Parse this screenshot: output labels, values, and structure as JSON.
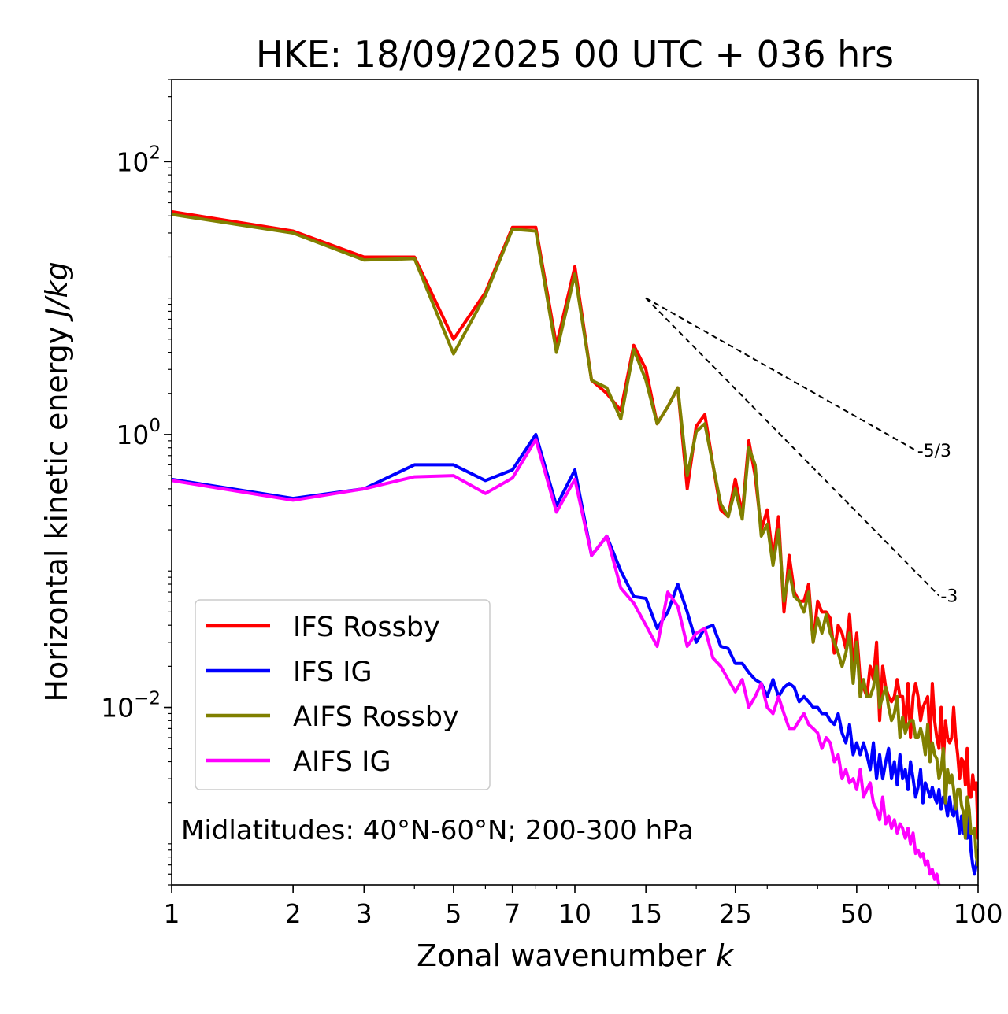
{
  "chart_data": {
    "type": "line",
    "title": "HKE: 18/09/2025 00 UTC + 036 hrs",
    "xlabel": "Zonal wavenumber",
    "xlabel_var": "k",
    "ylabel": "Horizontal kinetic energy",
    "ylabel_unit": "J/kg",
    "xscale": "log",
    "yscale": "log",
    "xlim": [
      1,
      100
    ],
    "ylim": [
      0.0005,
      400
    ],
    "xticks": [
      1,
      2,
      3,
      5,
      7,
      10,
      15,
      25,
      50,
      100
    ],
    "xtick_labels": [
      "1",
      "2",
      "3",
      "5",
      "7",
      "10",
      "15",
      "25",
      "50",
      "100"
    ],
    "yticks": [
      {
        "value": 100,
        "base": "10",
        "exp": "2"
      },
      {
        "value": 1,
        "base": "10",
        "exp": "0"
      },
      {
        "value": 0.01,
        "base": "10",
        "exp": "−2"
      }
    ],
    "legend_position": "lower-left",
    "annotation": "Midlatitudes: 40°N-60°N; 200-300 hPa",
    "reference_slopes": [
      {
        "label": "-5/3",
        "slope": -1.6667,
        "x_start": 15,
        "y_start": 10,
        "x_end": 70
      },
      {
        "label": "-3",
        "slope": -3,
        "x_start": 15,
        "y_start": 10,
        "x_end": 80
      }
    ],
    "series": [
      {
        "name": "IFS Rossby",
        "color": "#ff0000",
        "x": [
          1,
          2,
          3,
          4,
          5,
          6,
          7,
          8,
          9,
          10,
          11,
          12,
          13,
          14,
          15,
          16,
          17,
          18,
          19,
          20,
          21,
          22,
          23,
          24,
          25,
          26,
          27,
          28,
          29,
          30,
          31,
          32,
          33,
          34,
          35,
          36,
          37,
          38,
          39,
          40,
          41,
          42,
          43,
          44,
          45,
          46,
          47,
          48,
          49,
          50,
          51,
          52,
          53,
          54,
          55,
          56,
          57,
          58,
          59,
          60,
          61,
          62,
          63,
          64,
          65,
          66,
          67,
          68,
          69,
          70,
          71,
          72,
          73,
          74,
          75,
          76,
          77,
          78,
          79,
          80,
          81,
          82,
          83,
          84,
          85,
          86,
          87,
          88,
          89,
          90,
          91,
          92,
          93,
          94,
          95,
          96,
          97,
          98,
          99,
          100
        ],
        "y": [
          43,
          31,
          20,
          20,
          5,
          11,
          33,
          33,
          4.5,
          17,
          2.5,
          2,
          1.5,
          4.5,
          3,
          1.2,
          1.6,
          2.2,
          0.4,
          1.15,
          1.4,
          0.6,
          0.28,
          0.25,
          0.47,
          0.26,
          0.9,
          0.5,
          0.2,
          0.28,
          0.12,
          0.25,
          0.05,
          0.13,
          0.07,
          0.06,
          0.06,
          0.08,
          0.03,
          0.06,
          0.05,
          0.05,
          0.045,
          0.025,
          0.04,
          0.035,
          0.027,
          0.048,
          0.02,
          0.035,
          0.016,
          0.014,
          0.012,
          0.02,
          0.016,
          0.03,
          0.008,
          0.02,
          0.014,
          0.012,
          0.011,
          0.012,
          0.016,
          0.012,
          0.012,
          0.007,
          0.015,
          0.006,
          0.012,
          0.015,
          0.012,
          0.008,
          0.01,
          0.011,
          0.012,
          0.0055,
          0.015,
          0.008,
          0.006,
          0.005,
          0.01,
          0.004,
          0.008,
          0.006,
          0.0055,
          0.006,
          0.01,
          0.006,
          0.0045,
          0.003,
          0.0042,
          0.004,
          0.0027,
          0.005,
          0.0022,
          0.0022,
          0.0032,
          0.0025,
          0.0028,
          0.0011
        ]
      },
      {
        "name": "IFS IG",
        "color": "#0000ff",
        "x": [
          1,
          2,
          3,
          4,
          5,
          6,
          7,
          8,
          9,
          10,
          11,
          12,
          13,
          14,
          15,
          16,
          17,
          18,
          19,
          20,
          21,
          22,
          23,
          24,
          25,
          26,
          27,
          28,
          29,
          30,
          31,
          32,
          33,
          34,
          35,
          36,
          37,
          38,
          39,
          40,
          41,
          42,
          43,
          44,
          45,
          46,
          47,
          48,
          49,
          50,
          51,
          52,
          53,
          54,
          55,
          56,
          57,
          58,
          59,
          60,
          61,
          62,
          63,
          64,
          65,
          66,
          67,
          68,
          69,
          70,
          71,
          72,
          73,
          74,
          75,
          76,
          77,
          78,
          79,
          80,
          81,
          82,
          83,
          84,
          85,
          86,
          87,
          88,
          89,
          90,
          91,
          92,
          93,
          94,
          95,
          96,
          97,
          98,
          99,
          100
        ],
        "y": [
          0.47,
          0.34,
          0.4,
          0.6,
          0.6,
          0.46,
          0.55,
          1.0,
          0.3,
          0.55,
          0.13,
          0.18,
          0.1,
          0.065,
          0.063,
          0.038,
          0.05,
          0.08,
          0.05,
          0.03,
          0.038,
          0.04,
          0.028,
          0.027,
          0.021,
          0.021,
          0.018,
          0.016,
          0.015,
          0.012,
          0.016,
          0.012,
          0.014,
          0.015,
          0.014,
          0.011,
          0.012,
          0.011,
          0.01,
          0.01,
          0.009,
          0.009,
          0.008,
          0.0075,
          0.009,
          0.0065,
          0.0055,
          0.0075,
          0.0045,
          0.0055,
          0.0045,
          0.0055,
          0.0045,
          0.0035,
          0.0055,
          0.003,
          0.0045,
          0.003,
          0.004,
          0.005,
          0.003,
          0.004,
          0.0027,
          0.0045,
          0.003,
          0.0035,
          0.0025,
          0.004,
          0.003,
          0.0022,
          0.0026,
          0.0035,
          0.002,
          0.0028,
          0.0025,
          0.0022,
          0.0026,
          0.0022,
          0.002,
          0.0025,
          0.0018,
          0.0022,
          0.002,
          0.0016,
          0.0022,
          0.0017,
          0.0016,
          0.0022,
          0.0015,
          0.0012,
          0.0016,
          0.0012,
          0.0014,
          0.0011,
          0.0017,
          0.0009,
          0.0007,
          0.0006,
          0.0007,
          0.0009
        ]
      },
      {
        "name": "AIFS Rossby",
        "color": "#808000",
        "x": [
          1,
          2,
          3,
          4,
          5,
          6,
          7,
          8,
          9,
          10,
          11,
          12,
          13,
          14,
          15,
          16,
          17,
          18,
          19,
          20,
          21,
          22,
          23,
          24,
          25,
          26,
          27,
          28,
          29,
          30,
          31,
          32,
          33,
          34,
          35,
          36,
          37,
          38,
          39,
          40,
          41,
          42,
          43,
          44,
          45,
          46,
          47,
          48,
          49,
          50,
          51,
          52,
          53,
          54,
          55,
          56,
          57,
          58,
          59,
          60,
          61,
          62,
          63,
          64,
          65,
          66,
          67,
          68,
          69,
          70,
          71,
          72,
          73,
          74,
          75,
          76,
          77,
          78,
          79,
          80,
          81,
          82,
          83,
          84,
          85,
          86,
          87,
          88,
          89,
          90,
          91,
          92,
          93,
          94,
          95,
          96,
          97,
          98,
          99,
          100
        ],
        "y": [
          41,
          30,
          19,
          19.5,
          3.9,
          10.5,
          32,
          31,
          4,
          15,
          2.5,
          2.2,
          1.3,
          4.2,
          2.5,
          1.2,
          1.6,
          2.2,
          0.5,
          1.05,
          1.2,
          0.6,
          0.31,
          0.25,
          0.4,
          0.24,
          0.8,
          0.6,
          0.18,
          0.22,
          0.11,
          0.2,
          0.06,
          0.1,
          0.065,
          0.06,
          0.05,
          0.07,
          0.03,
          0.045,
          0.035,
          0.048,
          0.035,
          0.03,
          0.025,
          0.02,
          0.025,
          0.035,
          0.015,
          0.03,
          0.012,
          0.016,
          0.012,
          0.012,
          0.014,
          0.02,
          0.01,
          0.012,
          0.014,
          0.01,
          0.008,
          0.009,
          0.012,
          0.006,
          0.0085,
          0.0065,
          0.0075,
          0.008,
          0.008,
          0.006,
          0.006,
          0.007,
          0.006,
          0.0045,
          0.0075,
          0.004,
          0.0055,
          0.0045,
          0.0042,
          0.003,
          0.0035,
          0.005,
          0.002,
          0.0035,
          0.0028,
          0.0032,
          0.0025,
          0.0018,
          0.0025,
          0.0025,
          0.0019,
          0.0017,
          0.0011,
          0.0022,
          0.0018,
          0.0012,
          0.0012,
          0.0013,
          0.0008,
          0.0007
        ]
      },
      {
        "name": "AIFS IG",
        "color": "#ff00ff",
        "x": [
          1,
          2,
          3,
          4,
          5,
          6,
          7,
          8,
          9,
          10,
          11,
          12,
          13,
          14,
          15,
          16,
          17,
          18,
          19,
          20,
          21,
          22,
          23,
          24,
          25,
          26,
          27,
          28,
          29,
          30,
          31,
          32,
          33,
          34,
          35,
          36,
          37,
          38,
          39,
          40,
          41,
          42,
          43,
          44,
          45,
          46,
          47,
          48,
          49,
          50,
          51,
          52,
          53,
          54,
          55,
          56,
          57,
          58,
          59,
          60,
          61,
          62,
          63,
          64,
          65,
          66,
          67,
          68,
          69,
          70,
          71,
          72,
          73,
          74,
          75,
          76,
          77,
          78,
          79,
          80
        ],
        "y": [
          0.46,
          0.33,
          0.4,
          0.49,
          0.5,
          0.37,
          0.48,
          0.92,
          0.27,
          0.47,
          0.13,
          0.18,
          0.075,
          0.058,
          0.04,
          0.028,
          0.07,
          0.055,
          0.028,
          0.035,
          0.038,
          0.023,
          0.02,
          0.016,
          0.013,
          0.016,
          0.01,
          0.012,
          0.015,
          0.01,
          0.009,
          0.012,
          0.009,
          0.007,
          0.007,
          0.008,
          0.009,
          0.0075,
          0.007,
          0.0065,
          0.005,
          0.006,
          0.0055,
          0.004,
          0.0045,
          0.003,
          0.0035,
          0.0028,
          0.003,
          0.0025,
          0.0035,
          0.0022,
          0.0025,
          0.0028,
          0.002,
          0.0018,
          0.0015,
          0.0022,
          0.0014,
          0.0016,
          0.0013,
          0.0015,
          0.0012,
          0.0014,
          0.0013,
          0.0011,
          0.0013,
          0.001,
          0.0012,
          0.00085,
          0.0009,
          0.0008,
          0.00085,
          0.0007,
          0.00075,
          0.0006,
          0.00065,
          0.00055,
          0.0006,
          0.0005
        ]
      }
    ]
  }
}
